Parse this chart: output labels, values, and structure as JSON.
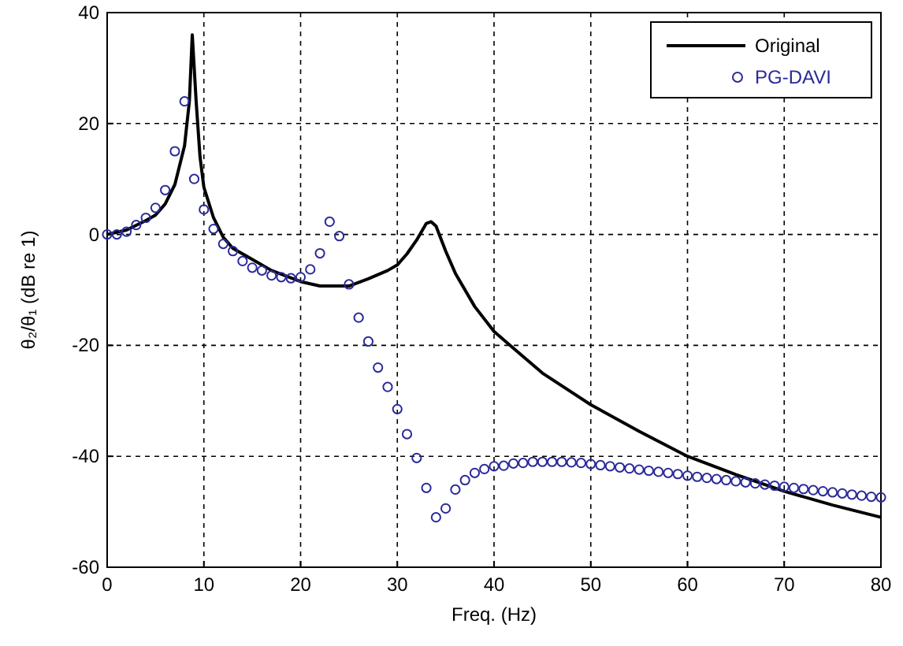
{
  "chart_data": {
    "type": "line",
    "xlabel": "Freq. (Hz)",
    "ylabel": "θ₂/θ₁ (dB re 1)",
    "xlim": [
      0,
      80
    ],
    "xticks": [
      0,
      10,
      20,
      30,
      40,
      50,
      60,
      70,
      80
    ],
    "ylim": [
      -60,
      40
    ],
    "yticks": [
      -60,
      -40,
      -20,
      0,
      20,
      40
    ],
    "grid": true,
    "legend": "top right",
    "series": [
      {
        "name": "Original",
        "color": "#000000",
        "marker": "none",
        "line_style": "solid",
        "x": [
          0,
          2,
          4,
          5,
          6,
          7,
          8,
          8.5,
          8.8,
          9.2,
          9.6,
          10,
          11,
          12,
          13,
          15,
          17,
          20,
          22,
          25,
          27,
          29,
          30,
          31,
          32,
          33,
          33.5,
          34,
          35,
          36,
          38,
          40,
          42,
          45,
          50,
          55,
          60,
          65,
          70,
          75,
          80
        ],
        "values": [
          0,
          0.8,
          2.5,
          3.5,
          5.5,
          9,
          16,
          24,
          36,
          24,
          14,
          8.5,
          3,
          -0.5,
          -2.5,
          -4.5,
          -6.5,
          -8.5,
          -9.3,
          -9.3,
          -8,
          -6.5,
          -5.5,
          -3.5,
          -1,
          2,
          2.3,
          1.5,
          -3,
          -7,
          -13,
          -17.5,
          -20.5,
          -25,
          -30.7,
          -35.5,
          -40,
          -43.3,
          -46.3,
          -48.8,
          -51
        ]
      },
      {
        "name": "PG-DAVI",
        "type": "scatter",
        "color": "#2a2a9a",
        "marker": "circle",
        "x": [
          0,
          1,
          2,
          3,
          4,
          5,
          6,
          7,
          8,
          9,
          10,
          11,
          12,
          13,
          14,
          15,
          16,
          17,
          18,
          19,
          20,
          21,
          22,
          23,
          24,
          25,
          26,
          27,
          28,
          29,
          30,
          31,
          32,
          33,
          34,
          35,
          36,
          37,
          38,
          39,
          40,
          41,
          42,
          43,
          44,
          45,
          46,
          47,
          48,
          49,
          50,
          51,
          52,
          53,
          54,
          55,
          56,
          57,
          58,
          59,
          60,
          61,
          62,
          63,
          64,
          65,
          66,
          67,
          68,
          69,
          70,
          71,
          72,
          73,
          74,
          75,
          76,
          77,
          78,
          79,
          80
        ],
        "values": [
          0,
          0,
          0.5,
          1.7,
          3,
          4.8,
          8,
          15,
          24,
          10,
          4.5,
          1,
          -1.7,
          -3,
          -4.8,
          -6,
          -6.5,
          -7.4,
          -7.7,
          -7.9,
          -7.7,
          -6.3,
          -3.4,
          2.3,
          -0.3,
          -9,
          -15,
          -19.3,
          -24,
          -27.5,
          -31.5,
          -36,
          -40.3,
          -45.7,
          -51,
          -49.4,
          -46,
          -44.3,
          -43,
          -42.3,
          -41.8,
          -41.7,
          -41.3,
          -41.2,
          -41,
          -41,
          -41,
          -41,
          -41.1,
          -41.2,
          -41.4,
          -41.6,
          -41.8,
          -42,
          -42.2,
          -42.4,
          -42.6,
          -42.8,
          -43,
          -43.2,
          -43.5,
          -43.7,
          -43.9,
          -44.1,
          -44.3,
          -44.5,
          -44.7,
          -44.9,
          -45.1,
          -45.3,
          -45.5,
          -45.7,
          -45.9,
          -46.1,
          -46.3,
          -46.5,
          -46.7,
          -46.9,
          -47.1,
          -47.3,
          -47.4
        ]
      }
    ]
  }
}
